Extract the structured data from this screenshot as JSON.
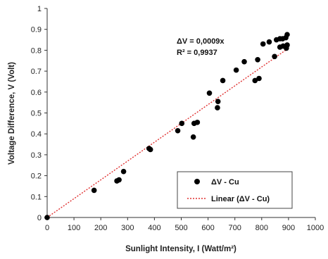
{
  "chart_data": {
    "type": "scatter",
    "xlabel": "Sunlight Intensity, I (Watt/m²)",
    "ylabel": "Voltage Difference, V  (Volt)",
    "xlim": [
      0,
      1000
    ],
    "ylim": [
      0,
      1
    ],
    "x_ticks": [
      "0",
      "100",
      "200",
      "300",
      "400",
      "500",
      "600",
      "700",
      "800",
      "900",
      "1000"
    ],
    "y_ticks": [
      "0",
      "0.1",
      "0.2",
      "0.3",
      "0.4",
      "0.5",
      "0.6",
      "0.7",
      "0.8",
      "0.9",
      "1"
    ],
    "grid": false,
    "legend_position": "bottom-right",
    "annotation": {
      "equation": "ΔV = 0,0009x",
      "r_squared": "R² = 0,9937"
    },
    "series": [
      {
        "name": "ΔV - Cu",
        "kind": "scatter",
        "color": "#000000",
        "points": [
          [
            0,
            0
          ],
          [
            175,
            0.13
          ],
          [
            260,
            0.175
          ],
          [
            268,
            0.18
          ],
          [
            285,
            0.22
          ],
          [
            380,
            0.33
          ],
          [
            385,
            0.325
          ],
          [
            487,
            0.415
          ],
          [
            502,
            0.45
          ],
          [
            545,
            0.385
          ],
          [
            548,
            0.45
          ],
          [
            560,
            0.455
          ],
          [
            635,
            0.525
          ],
          [
            637,
            0.555
          ],
          [
            655,
            0.655
          ],
          [
            605,
            0.595
          ],
          [
            705,
            0.705
          ],
          [
            735,
            0.745
          ],
          [
            775,
            0.655
          ],
          [
            785,
            0.755
          ],
          [
            790,
            0.665
          ],
          [
            805,
            0.83
          ],
          [
            828,
            0.84
          ],
          [
            848,
            0.77
          ],
          [
            855,
            0.85
          ],
          [
            868,
            0.815
          ],
          [
            868,
            0.855
          ],
          [
            878,
            0.855
          ],
          [
            880,
            0.82
          ],
          [
            890,
            0.86
          ],
          [
            892,
            0.81
          ],
          [
            895,
            0.875
          ],
          [
            895,
            0.825
          ]
        ]
      },
      {
        "name": "Linear (ΔV - Cu)",
        "kind": "trendline",
        "color": "#e03030",
        "slope": 0.0009,
        "x": [
          0,
          900
        ]
      }
    ]
  }
}
